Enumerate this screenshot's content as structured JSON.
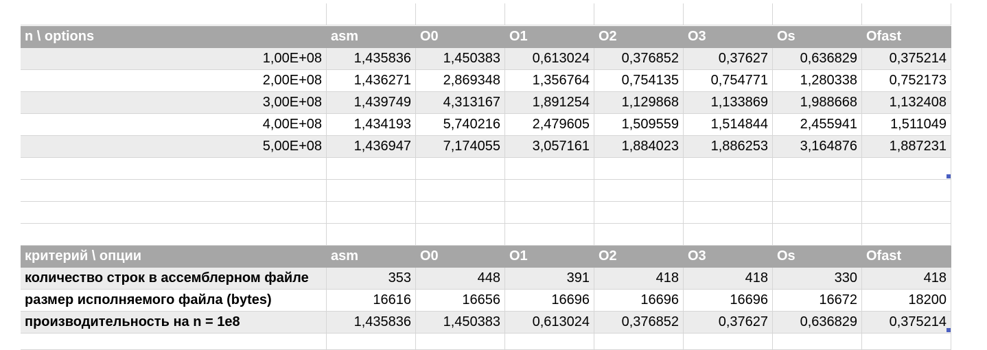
{
  "table1": {
    "header": [
      "n \\ options",
      "asm",
      "O0",
      "O1",
      "O2",
      "O3",
      "Os",
      "Ofast"
    ],
    "rows": [
      [
        "1,00E+08",
        "1,435836",
        "1,450383",
        "0,613024",
        "0,376852",
        "0,37627",
        "0,636829",
        "0,375214"
      ],
      [
        "2,00E+08",
        "1,436271",
        "2,869348",
        "1,356764",
        "0,754135",
        "0,754771",
        "1,280338",
        "0,752173"
      ],
      [
        "3,00E+08",
        "1,439749",
        "4,313167",
        "1,891254",
        "1,129868",
        "1,133869",
        "1,988668",
        "1,132408"
      ],
      [
        "4,00E+08",
        "1,434193",
        "5,740216",
        "2,479605",
        "1,509559",
        "1,514844",
        "2,455941",
        "1,511049"
      ],
      [
        "5,00E+08",
        "1,436947",
        "7,174055",
        "3,057161",
        "1,884023",
        "1,886253",
        "3,164876",
        "1,887231"
      ]
    ]
  },
  "table2": {
    "header": [
      "критерий \\ опции",
      "asm",
      "O0",
      "O1",
      "O2",
      "O3",
      "Os",
      "Ofast"
    ],
    "rows": [
      [
        "количество строк в ассемблерном файле",
        "353",
        "448",
        "391",
        "418",
        "418",
        "330",
        "418"
      ],
      [
        "размер исполняемого файла (bytes)",
        "16616",
        "16656",
        "16696",
        "16696",
        "16696",
        "16672",
        "18200"
      ],
      [
        "производительность на n = 1e8",
        "1,435836",
        "1,450383",
        "0,613024",
        "0,376852",
        "0,37627",
        "0,636829",
        "0,375214"
      ]
    ]
  },
  "colors": {
    "header_bg": "#a6a6a6",
    "band_bg": "#ececec",
    "grid": "#d6d6d6",
    "selection_marker": "#4a5fc1"
  }
}
